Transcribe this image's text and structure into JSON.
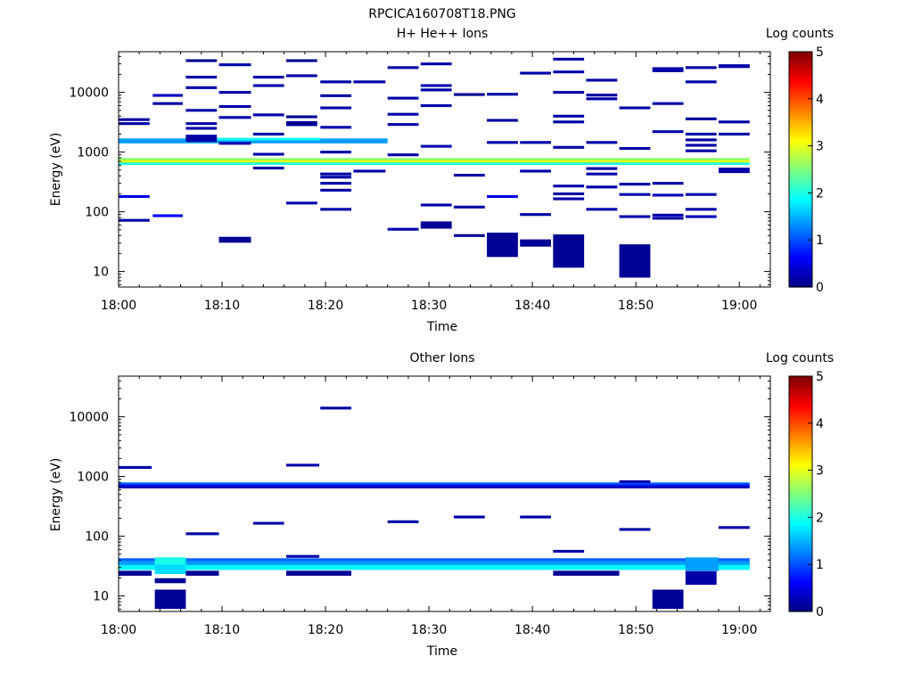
{
  "figure_title": "RPCICA160708T18.PNG",
  "colorbar": {
    "label": "Log counts",
    "ticks": [
      "0",
      "1",
      "2",
      "3",
      "4",
      "5"
    ],
    "min": 0,
    "max": 5,
    "colormap": "jet"
  },
  "chart_data": [
    {
      "type": "heatmap",
      "title": "H+ He++ Ions",
      "xlabel": "Time",
      "ylabel": "Energy (eV)",
      "x_ticks": [
        "18:00",
        "18:10",
        "18:20",
        "18:30",
        "18:40",
        "18:50",
        "19:00"
      ],
      "y_ticks": [
        "10",
        "100",
        "1000",
        "10000"
      ],
      "xlim_minutes": [
        0,
        63
      ],
      "ylim_ev": [
        5.5,
        48000
      ],
      "yscale": "log",
      "cells": [
        {
          "t0": 0,
          "t1": 66,
          "e": 700,
          "h": 1.12,
          "v": 3.1
        },
        {
          "t0": 0,
          "t1": 66,
          "e": 760,
          "h": 1.05,
          "v": 2.6
        },
        {
          "t0": 0,
          "t1": 66,
          "e": 640,
          "h": 1.05,
          "v": 2.0
        },
        {
          "t0": 0,
          "t1": 26,
          "e": 1540,
          "h": 1.1,
          "v": 1.4
        },
        {
          "t0": 9.5,
          "t1": 19.5,
          "e": 1650,
          "h": 1.05,
          "v": 1.9
        },
        {
          "t0": 0,
          "t1": 3,
          "e": 3500,
          "v": 0.15
        },
        {
          "t0": 0,
          "t1": 3,
          "e": 3000,
          "v": 0.2
        },
        {
          "t0": 0,
          "t1": 3,
          "e": 180,
          "v": 0.5
        },
        {
          "t0": 0,
          "t1": 3,
          "e": 72,
          "v": 0.2
        },
        {
          "t0": 3.3,
          "t1": 6.2,
          "e": 8900,
          "v": 0.3
        },
        {
          "t0": 3.3,
          "t1": 6.2,
          "e": 6500,
          "v": 0.2
        },
        {
          "t0": 3.3,
          "t1": 6.2,
          "e": 86,
          "v": 0.6
        },
        {
          "t0": 6.5,
          "t1": 9.5,
          "e": 34000,
          "v": 0.1
        },
        {
          "t0": 6.5,
          "t1": 9.5,
          "e": 18000,
          "v": 0.2
        },
        {
          "t0": 6.5,
          "t1": 9.5,
          "e": 12000,
          "v": 0.2
        },
        {
          "t0": 6.5,
          "t1": 9.5,
          "e": 5000,
          "v": 0.2
        },
        {
          "t0": 6.5,
          "t1": 9.5,
          "e": 3000,
          "v": 0.2
        },
        {
          "t0": 6.5,
          "t1": 9.5,
          "e": 2500,
          "v": 0.2
        },
        {
          "t0": 6.5,
          "t1": 9.5,
          "e": 1700,
          "h": 1.15,
          "v": 0.2
        },
        {
          "t0": 9.7,
          "t1": 12.8,
          "e": 29000,
          "v": 0.2
        },
        {
          "t0": 9.7,
          "t1": 12.8,
          "e": 10000,
          "v": 0.2
        },
        {
          "t0": 9.7,
          "t1": 12.8,
          "e": 5800,
          "v": 0.2
        },
        {
          "t0": 9.7,
          "t1": 12.8,
          "e": 3800,
          "v": 0.2
        },
        {
          "t0": 9.7,
          "t1": 12.8,
          "e": 1400,
          "v": 0.2
        },
        {
          "t0": 9.7,
          "t1": 12.8,
          "e": 34,
          "h": 1.12,
          "v": 0.1
        },
        {
          "t0": 13,
          "t1": 16,
          "e": 18000,
          "v": 0.2
        },
        {
          "t0": 13,
          "t1": 16,
          "e": 13000,
          "v": 0.2
        },
        {
          "t0": 13,
          "t1": 16,
          "e": 4200,
          "v": 0.2
        },
        {
          "t0": 13,
          "t1": 16,
          "e": 2000,
          "v": 0.2
        },
        {
          "t0": 13,
          "t1": 16,
          "e": 920,
          "v": 0.2
        },
        {
          "t0": 13,
          "t1": 16,
          "e": 540,
          "v": 0.2
        },
        {
          "t0": 16.2,
          "t1": 19.2,
          "e": 34000,
          "v": 0.1
        },
        {
          "t0": 16.2,
          "t1": 19.2,
          "e": 19000,
          "v": 0.2
        },
        {
          "t0": 16.2,
          "t1": 19.2,
          "e": 3900,
          "v": 0.1
        },
        {
          "t0": 16.2,
          "t1": 19.2,
          "e": 3000,
          "h": 1.1,
          "v": 0.1
        },
        {
          "t0": 16.2,
          "t1": 19.2,
          "e": 140,
          "v": 0.2
        },
        {
          "t0": 19.5,
          "t1": 22.5,
          "e": 15000,
          "v": 0.2
        },
        {
          "t0": 19.5,
          "t1": 22.5,
          "e": 8800,
          "v": 0.2
        },
        {
          "t0": 19.5,
          "t1": 22.5,
          "e": 5500,
          "v": 0.2
        },
        {
          "t0": 19.5,
          "t1": 22.5,
          "e": 2600,
          "v": 0.2
        },
        {
          "t0": 19.5,
          "t1": 22.5,
          "e": 1000,
          "v": 0.2
        },
        {
          "t0": 19.5,
          "t1": 22.5,
          "e": 430,
          "v": 0.2
        },
        {
          "t0": 19.5,
          "t1": 22.5,
          "e": 380,
          "v": 0.2
        },
        {
          "t0": 19.5,
          "t1": 22.5,
          "e": 300,
          "v": 0.2
        },
        {
          "t0": 19.5,
          "t1": 22.5,
          "e": 230,
          "v": 0.2
        },
        {
          "t0": 19.5,
          "t1": 22.5,
          "e": 110,
          "v": 0.2
        },
        {
          "t0": 22.7,
          "t1": 25.8,
          "e": 15000,
          "v": 0.2
        },
        {
          "t0": 22.7,
          "t1": 25.8,
          "e": 480,
          "v": 0.2
        },
        {
          "t0": 26,
          "t1": 29,
          "e": 26000,
          "v": 0.2
        },
        {
          "t0": 26,
          "t1": 29,
          "e": 8000,
          "v": 0.2
        },
        {
          "t0": 26,
          "t1": 29,
          "e": 4300,
          "v": 0.2
        },
        {
          "t0": 26,
          "t1": 29,
          "e": 2900,
          "v": 0.2
        },
        {
          "t0": 26,
          "t1": 29,
          "e": 900,
          "v": 0.2
        },
        {
          "t0": 26,
          "t1": 29,
          "e": 51,
          "v": 0.2
        },
        {
          "t0": 29.2,
          "t1": 32.2,
          "e": 30000,
          "v": 0.2
        },
        {
          "t0": 29.2,
          "t1": 32.2,
          "e": 13000,
          "v": 0.2
        },
        {
          "t0": 29.2,
          "t1": 32.2,
          "e": 11000,
          "v": 0.2
        },
        {
          "t0": 29.2,
          "t1": 32.2,
          "e": 6000,
          "v": 0.2
        },
        {
          "t0": 29.2,
          "t1": 32.2,
          "e": 1250,
          "v": 0.2
        },
        {
          "t0": 29.2,
          "t1": 32.2,
          "e": 130,
          "v": 0.2
        },
        {
          "t0": 29.2,
          "t1": 32.2,
          "e": 60,
          "h": 1.15,
          "v": 0.1
        },
        {
          "t0": 32.4,
          "t1": 35.4,
          "e": 9200,
          "v": 0.1
        },
        {
          "t0": 32.4,
          "t1": 35.4,
          "e": 410,
          "v": 0.2
        },
        {
          "t0": 32.4,
          "t1": 35.4,
          "e": 120,
          "v": 0.2
        },
        {
          "t0": 32.4,
          "t1": 35.4,
          "e": 40,
          "v": 0.1
        },
        {
          "t0": 35.6,
          "t1": 38.6,
          "e": 9300,
          "v": 0.2
        },
        {
          "t0": 35.6,
          "t1": 38.6,
          "e": 3400,
          "v": 0.2
        },
        {
          "t0": 35.6,
          "t1": 38.6,
          "e": 1450,
          "v": 0.2
        },
        {
          "t0": 35.6,
          "t1": 38.6,
          "e": 180,
          "v": 0.5
        },
        {
          "t0": 35.6,
          "t1": 38.6,
          "e": 28,
          "h": 1.6,
          "v": 0.1
        },
        {
          "t0": 38.8,
          "t1": 41.8,
          "e": 21000,
          "v": 0.2
        },
        {
          "t0": 38.8,
          "t1": 41.8,
          "e": 1450,
          "v": 0.2
        },
        {
          "t0": 38.8,
          "t1": 41.8,
          "e": 480,
          "v": 0.2
        },
        {
          "t0": 38.8,
          "t1": 41.8,
          "e": 90,
          "v": 0.2
        },
        {
          "t0": 38.8,
          "t1": 41.8,
          "e": 30,
          "h": 1.15,
          "v": 0.1
        },
        {
          "t0": 42,
          "t1": 45,
          "e": 36000,
          "v": 0.2
        },
        {
          "t0": 42,
          "t1": 45,
          "e": 22000,
          "v": 0.2
        },
        {
          "t0": 42,
          "t1": 45,
          "e": 10000,
          "v": 0.2
        },
        {
          "t0": 42,
          "t1": 45,
          "e": 4000,
          "v": 0.2
        },
        {
          "t0": 42,
          "t1": 45,
          "e": 3200,
          "v": 0.2
        },
        {
          "t0": 42,
          "t1": 45,
          "e": 1200,
          "v": 0.2
        },
        {
          "t0": 42,
          "t1": 45,
          "e": 270,
          "v": 0.2
        },
        {
          "t0": 42,
          "t1": 45,
          "e": 200,
          "v": 0.2
        },
        {
          "t0": 42,
          "t1": 45,
          "e": 165,
          "v": 0.2
        },
        {
          "t0": 42,
          "t1": 45,
          "e": 22,
          "h": 1.9,
          "v": 0.1
        },
        {
          "t0": 45.2,
          "t1": 48.2,
          "e": 16000,
          "v": 0.2
        },
        {
          "t0": 45.2,
          "t1": 48.2,
          "e": 9000,
          "v": 0.2
        },
        {
          "t0": 45.2,
          "t1": 48.2,
          "e": 7800,
          "v": 0.2
        },
        {
          "t0": 45.2,
          "t1": 48.2,
          "e": 1450,
          "v": 0.2
        },
        {
          "t0": 45.2,
          "t1": 48.2,
          "e": 530,
          "v": 0.2
        },
        {
          "t0": 45.2,
          "t1": 48.2,
          "e": 430,
          "v": 0.2
        },
        {
          "t0": 45.2,
          "t1": 48.2,
          "e": 260,
          "v": 0.2
        },
        {
          "t0": 45.2,
          "t1": 48.2,
          "e": 110,
          "v": 0.2
        },
        {
          "t0": 48.4,
          "t1": 51.4,
          "e": 5500,
          "v": 0.2
        },
        {
          "t0": 48.4,
          "t1": 51.4,
          "e": 1150,
          "v": 0.2
        },
        {
          "t0": 48.4,
          "t1": 51.4,
          "e": 290,
          "v": 0.2
        },
        {
          "t0": 48.4,
          "t1": 51.4,
          "e": 195,
          "v": 0.2
        },
        {
          "t0": 48.4,
          "t1": 51.4,
          "e": 83,
          "v": 0.2
        },
        {
          "t0": 48.4,
          "t1": 51.4,
          "e": 15,
          "h": 1.9,
          "v": 0.1
        },
        {
          "t0": 51.6,
          "t1": 54.6,
          "e": 25000,
          "v": 0.2
        },
        {
          "t0": 51.6,
          "t1": 54.6,
          "e": 23000,
          "v": 0.2
        },
        {
          "t0": 51.6,
          "t1": 54.6,
          "e": 6500,
          "v": 0.2
        },
        {
          "t0": 51.6,
          "t1": 54.6,
          "e": 2200,
          "v": 0.2
        },
        {
          "t0": 51.6,
          "t1": 54.6,
          "e": 300,
          "v": 0.2
        },
        {
          "t0": 51.6,
          "t1": 54.6,
          "e": 190,
          "v": 0.3
        },
        {
          "t0": 51.6,
          "t1": 54.6,
          "e": 88,
          "v": 0.2
        },
        {
          "t0": 51.6,
          "t1": 54.6,
          "e": 78,
          "v": 0.2
        },
        {
          "t0": 54.8,
          "t1": 57.8,
          "e": 26000,
          "v": 0.2
        },
        {
          "t0": 54.8,
          "t1": 57.8,
          "e": 15000,
          "v": 0.2
        },
        {
          "t0": 54.8,
          "t1": 57.8,
          "e": 3600,
          "v": 0.2
        },
        {
          "t0": 54.8,
          "t1": 57.8,
          "e": 2000,
          "v": 0.2
        },
        {
          "t0": 54.8,
          "t1": 57.8,
          "e": 1600,
          "v": 0.2
        },
        {
          "t0": 54.8,
          "t1": 57.8,
          "e": 1300,
          "v": 0.2
        },
        {
          "t0": 54.8,
          "t1": 57.8,
          "e": 1050,
          "v": 0.2
        },
        {
          "t0": 54.8,
          "t1": 57.8,
          "e": 195,
          "v": 0.2
        },
        {
          "t0": 54.8,
          "t1": 57.8,
          "e": 110,
          "v": 0.2
        },
        {
          "t0": 54.8,
          "t1": 57.8,
          "e": 83,
          "v": 0.3
        },
        {
          "t0": 58,
          "t1": 61,
          "e": 28000,
          "v": 0.2
        },
        {
          "t0": 58,
          "t1": 61,
          "e": 27000,
          "v": 0.2
        },
        {
          "t0": 58,
          "t1": 61,
          "e": 3200,
          "v": 0.2
        },
        {
          "t0": 58,
          "t1": 61,
          "e": 2000,
          "v": 0.2
        },
        {
          "t0": 58,
          "t1": 61,
          "e": 520,
          "v": 0.2
        },
        {
          "t0": 58,
          "t1": 61,
          "e": 470,
          "v": 0.2
        }
      ]
    },
    {
      "type": "heatmap",
      "title": "Other Ions",
      "xlabel": "Time",
      "ylabel": "Energy (eV)",
      "x_ticks": [
        "18:00",
        "18:10",
        "18:20",
        "18:30",
        "18:40",
        "18:50",
        "19:00"
      ],
      "y_ticks": [
        "10",
        "100",
        "1000",
        "10000"
      ],
      "xlim_minutes": [
        0,
        63
      ],
      "ylim_ev": [
        5.5,
        48000
      ],
      "yscale": "log",
      "cells": [
        {
          "t0": 0,
          "t1": 61,
          "e": 760,
          "h": 1.05,
          "v": 1.2
        },
        {
          "t0": 0,
          "t1": 61,
          "e": 720,
          "h": 1.05,
          "v": 0.8
        },
        {
          "t0": 0,
          "t1": 61,
          "e": 665,
          "h": 1.05,
          "v": 0.3
        },
        {
          "t0": 0,
          "t1": 61,
          "e": 40,
          "h": 1.07,
          "v": 1.1
        },
        {
          "t0": 0,
          "t1": 61,
          "e": 35,
          "h": 1.1,
          "v": 1.4
        },
        {
          "t0": 0,
          "t1": 61,
          "e": 30,
          "h": 1.1,
          "v": 1.85
        },
        {
          "t0": 0,
          "t1": 3.2,
          "e": 24,
          "h": 1.1,
          "v": 0.1
        },
        {
          "t0": 3.5,
          "t1": 6.5,
          "e": 37,
          "h": 1.2,
          "v": 2.0
        },
        {
          "t0": 3.5,
          "t1": 6.5,
          "e": 28,
          "h": 1.2,
          "v": 1.7
        },
        {
          "t0": 6.5,
          "t1": 9.7,
          "e": 24,
          "h": 1.1,
          "v": 0.1
        },
        {
          "t0": 16.2,
          "t1": 22.5,
          "e": 24,
          "h": 1.1,
          "v": 0.1
        },
        {
          "t0": 42,
          "t1": 48.4,
          "e": 24,
          "h": 1.1,
          "v": 0.1
        },
        {
          "t0": 54.8,
          "t1": 58,
          "e": 34,
          "h": 1.3,
          "v": 1.4
        },
        {
          "t0": 0,
          "t1": 3.2,
          "e": 1420,
          "v": 0.2
        },
        {
          "t0": 3.5,
          "t1": 6.5,
          "e": 18,
          "h": 1.1,
          "v": 0.1
        },
        {
          "t0": 3.5,
          "t1": 6.5,
          "e": 8.8,
          "h": 1.45,
          "v": 0.1
        },
        {
          "t0": 6.5,
          "t1": 9.7,
          "e": 110,
          "v": 0.2
        },
        {
          "t0": 13,
          "t1": 16,
          "e": 165,
          "v": 0.2
        },
        {
          "t0": 16.2,
          "t1": 19.4,
          "e": 1550,
          "v": 0.2
        },
        {
          "t0": 16.2,
          "t1": 19.4,
          "e": 46,
          "v": 0.2
        },
        {
          "t0": 19.5,
          "t1": 22.5,
          "e": 14000,
          "v": 0.2
        },
        {
          "t0": 26,
          "t1": 29,
          "e": 175,
          "v": 0.2
        },
        {
          "t0": 32.4,
          "t1": 35.4,
          "e": 210,
          "v": 0.2
        },
        {
          "t0": 38.8,
          "t1": 41.8,
          "e": 210,
          "v": 0.2
        },
        {
          "t0": 42,
          "t1": 45,
          "e": 56,
          "v": 0.2
        },
        {
          "t0": 48.4,
          "t1": 51.4,
          "e": 130,
          "v": 0.2
        },
        {
          "t0": 48.4,
          "t1": 51.4,
          "e": 820,
          "v": 0.2
        },
        {
          "t0": 51.6,
          "t1": 54.6,
          "e": 8.8,
          "h": 1.45,
          "v": 0.1
        },
        {
          "t0": 54.8,
          "t1": 57.8,
          "e": 20,
          "h": 1.3,
          "v": 0.2
        },
        {
          "t0": 58,
          "t1": 61,
          "e": 140,
          "v": 0.2
        }
      ]
    }
  ]
}
